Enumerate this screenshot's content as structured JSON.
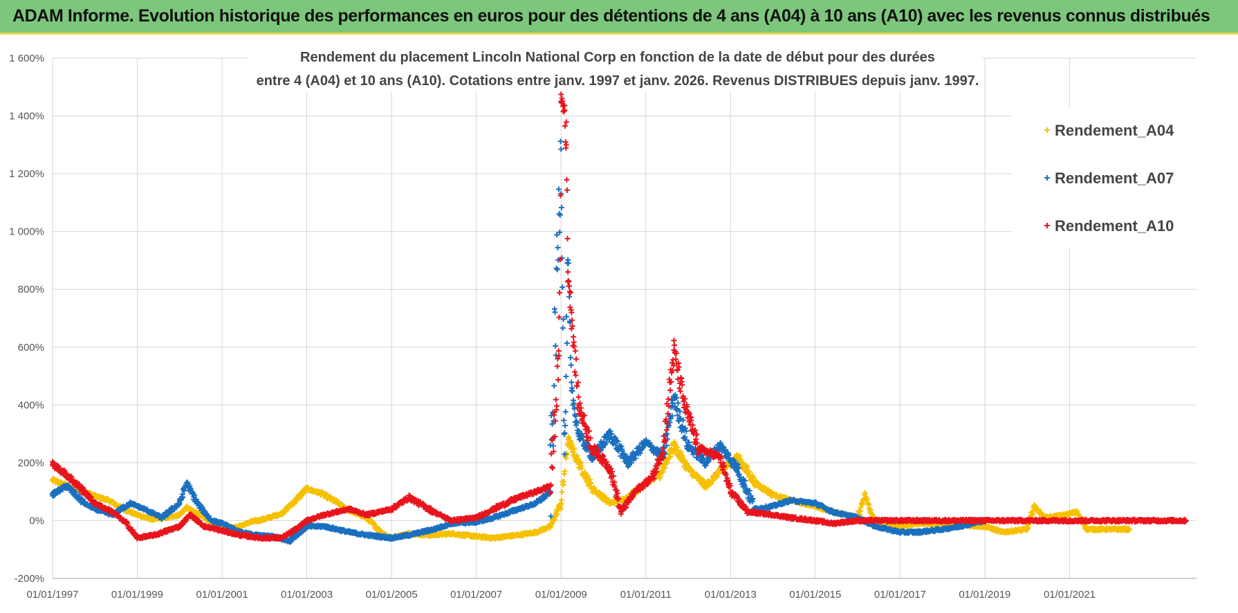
{
  "banner": {
    "title": "ADAM Informe. Evolution historique des performances en euros pour des détentions de 4 ans (A04) à 10 ans (A10) avec les revenus connus distribués",
    "background": "#7cc77b",
    "accent_border": "#e6d54a"
  },
  "chart_data": {
    "type": "scatter",
    "title_line1": "Rendement du placement Lincoln National Corp en fonction de la date de début pour des durées",
    "title_line2": "entre 4 (A04) et 10 ans (A10).  Cotations entre janv. 1997 et janv. 2026. Revenus DISTRIBUES  depuis janv. 1997.",
    "xlabel": "",
    "ylabel": "",
    "marker": "+",
    "grid": true,
    "legend_position": "top-right",
    "xlim": [
      "1997-01-01",
      "2023-12-31"
    ],
    "ylim": [
      -200,
      1600
    ],
    "y_ticks": [
      {
        "v": -200,
        "label": "-200%"
      },
      {
        "v": 0,
        "label": "0%"
      },
      {
        "v": 200,
        "label": "200%"
      },
      {
        "v": 400,
        "label": "400%"
      },
      {
        "v": 600,
        "label": "600%"
      },
      {
        "v": 800,
        "label": "800%"
      },
      {
        "v": 1000,
        "label": "1 000%"
      },
      {
        "v": 1200,
        "label": "1 200%"
      },
      {
        "v": 1400,
        "label": "1 400%"
      },
      {
        "v": 1600,
        "label": "1 600%"
      }
    ],
    "x_ticks": [
      {
        "date": "1997-01-01",
        "label": "01/01/1997"
      },
      {
        "date": "1999-01-01",
        "label": "01/01/1999"
      },
      {
        "date": "2001-01-01",
        "label": "01/01/2001"
      },
      {
        "date": "2003-01-01",
        "label": "01/01/2003"
      },
      {
        "date": "2005-01-01",
        "label": "01/01/2005"
      },
      {
        "date": "2007-01-01",
        "label": "01/01/2007"
      },
      {
        "date": "2009-01-01",
        "label": "01/01/2009"
      },
      {
        "date": "2011-01-01",
        "label": "01/01/2011"
      },
      {
        "date": "2013-01-01",
        "label": "01/01/2013"
      },
      {
        "date": "2015-01-01",
        "label": "01/01/2015"
      },
      {
        "date": "2017-01-01",
        "label": "01/01/2017"
      },
      {
        "date": "2019-01-01",
        "label": "01/01/2019"
      },
      {
        "date": "2021-01-01",
        "label": "01/01/2021"
      }
    ],
    "series": [
      {
        "name": "Rendement_A04",
        "color": "#f5c000",
        "points": [
          [
            "1997-01-01",
            140
          ],
          [
            "1997-06-01",
            115
          ],
          [
            "1997-10-01",
            100
          ],
          [
            "1998-01-01",
            85
          ],
          [
            "1998-05-01",
            70
          ],
          [
            "1998-09-01",
            40
          ],
          [
            "1999-01-01",
            20
          ],
          [
            "1999-05-01",
            5
          ],
          [
            "1999-09-01",
            10
          ],
          [
            "2000-01-01",
            20
          ],
          [
            "2000-03-01",
            45
          ],
          [
            "2000-06-01",
            25
          ],
          [
            "2000-10-01",
            -5
          ],
          [
            "2001-01-01",
            -15
          ],
          [
            "2001-05-01",
            -25
          ],
          [
            "2001-09-01",
            -5
          ],
          [
            "2002-01-01",
            5
          ],
          [
            "2002-06-01",
            25
          ],
          [
            "2002-09-01",
            60
          ],
          [
            "2003-01-01",
            110
          ],
          [
            "2003-05-01",
            95
          ],
          [
            "2003-10-01",
            60
          ],
          [
            "2004-01-01",
            35
          ],
          [
            "2004-06-01",
            10
          ],
          [
            "2004-10-01",
            -40
          ],
          [
            "2005-01-01",
            -60
          ],
          [
            "2005-06-01",
            -45
          ],
          [
            "2005-12-01",
            -50
          ],
          [
            "2006-06-01",
            -45
          ],
          [
            "2007-01-01",
            -55
          ],
          [
            "2007-06-01",
            -60
          ],
          [
            "2008-01-01",
            -50
          ],
          [
            "2008-06-01",
            -40
          ],
          [
            "2008-10-01",
            -20
          ],
          [
            "2009-01-01",
            60
          ],
          [
            "2009-03-01",
            280
          ],
          [
            "2009-06-01",
            200
          ],
          [
            "2009-10-01",
            110
          ],
          [
            "2010-03-01",
            60
          ],
          [
            "2010-08-01",
            80
          ],
          [
            "2011-01-01",
            130
          ],
          [
            "2011-05-01",
            160
          ],
          [
            "2011-09-01",
            260
          ],
          [
            "2012-01-01",
            180
          ],
          [
            "2012-06-01",
            120
          ],
          [
            "2012-10-01",
            170
          ],
          [
            "2013-03-01",
            220
          ],
          [
            "2013-08-01",
            130
          ],
          [
            "2014-01-01",
            90
          ],
          [
            "2014-06-01",
            70
          ],
          [
            "2015-01-01",
            50
          ],
          [
            "2015-06-01",
            30
          ],
          [
            "2016-01-01",
            10
          ],
          [
            "2016-03-01",
            90
          ],
          [
            "2016-06-01",
            -5
          ],
          [
            "2017-01-01",
            -20
          ],
          [
            "2017-06-01",
            -10
          ],
          [
            "2018-01-01",
            -10
          ],
          [
            "2018-06-01",
            -15
          ],
          [
            "2019-01-01",
            -20
          ],
          [
            "2019-06-01",
            -40
          ],
          [
            "2020-01-01",
            -30
          ],
          [
            "2020-03-01",
            50
          ],
          [
            "2020-06-01",
            10
          ],
          [
            "2020-12-01",
            20
          ],
          [
            "2021-03-01",
            30
          ],
          [
            "2021-06-01",
            -30
          ],
          [
            "2022-01-01",
            -30
          ],
          [
            "2022-06-01",
            -30
          ]
        ]
      },
      {
        "name": "Rendement_A07",
        "color": "#1a6fbf",
        "points": [
          [
            "1997-01-01",
            90
          ],
          [
            "1997-05-01",
            120
          ],
          [
            "1997-10-01",
            60
          ],
          [
            "1998-01-01",
            40
          ],
          [
            "1998-06-01",
            20
          ],
          [
            "1998-11-01",
            60
          ],
          [
            "1999-03-01",
            40
          ],
          [
            "1999-08-01",
            10
          ],
          [
            "2000-01-01",
            60
          ],
          [
            "2000-03-01",
            130
          ],
          [
            "2000-06-01",
            60
          ],
          [
            "2000-10-01",
            0
          ],
          [
            "2001-01-01",
            -10
          ],
          [
            "2001-06-01",
            -40
          ],
          [
            "2001-10-01",
            -50
          ],
          [
            "2002-04-01",
            -55
          ],
          [
            "2002-08-01",
            -70
          ],
          [
            "2003-01-01",
            -20
          ],
          [
            "2003-06-01",
            -20
          ],
          [
            "2004-01-01",
            -40
          ],
          [
            "2004-06-01",
            -50
          ],
          [
            "2005-01-01",
            -60
          ],
          [
            "2005-06-01",
            -50
          ],
          [
            "2006-01-01",
            -30
          ],
          [
            "2006-06-01",
            -10
          ],
          [
            "2007-01-01",
            -5
          ],
          [
            "2007-06-01",
            10
          ],
          [
            "2008-01-01",
            40
          ],
          [
            "2008-06-01",
            60
          ],
          [
            "2008-10-01",
            100
          ],
          [
            "2009-01-01",
            1285
          ],
          [
            "2009-02-01",
            230
          ],
          [
            "2009-03-01",
            890
          ],
          [
            "2009-04-01",
            450
          ],
          [
            "2009-06-01",
            300
          ],
          [
            "2009-10-01",
            220
          ],
          [
            "2010-03-01",
            300
          ],
          [
            "2010-08-01",
            200
          ],
          [
            "2011-01-01",
            270
          ],
          [
            "2011-06-01",
            220
          ],
          [
            "2011-09-01",
            430
          ],
          [
            "2012-01-01",
            260
          ],
          [
            "2012-06-01",
            200
          ],
          [
            "2012-10-01",
            260
          ],
          [
            "2013-03-01",
            180
          ],
          [
            "2013-08-01",
            40
          ],
          [
            "2014-01-01",
            50
          ],
          [
            "2014-06-01",
            70
          ],
          [
            "2015-01-01",
            60
          ],
          [
            "2015-06-01",
            30
          ],
          [
            "2016-01-01",
            10
          ],
          [
            "2016-06-01",
            -20
          ],
          [
            "2017-01-01",
            -40
          ],
          [
            "2017-06-01",
            -40
          ],
          [
            "2018-01-01",
            -30
          ],
          [
            "2018-06-01",
            -20
          ],
          [
            "2019-01-01",
            0
          ]
        ]
      },
      {
        "name": "Rendement_A10",
        "color": "#e8141c",
        "points": [
          [
            "1997-01-01",
            195
          ],
          [
            "1997-05-01",
            160
          ],
          [
            "1997-10-01",
            100
          ],
          [
            "1998-01-01",
            60
          ],
          [
            "1998-06-01",
            30
          ],
          [
            "1998-10-01",
            -10
          ],
          [
            "1999-01-01",
            -60
          ],
          [
            "1999-06-01",
            -50
          ],
          [
            "2000-01-01",
            -20
          ],
          [
            "2000-04-01",
            20
          ],
          [
            "2000-08-01",
            -20
          ],
          [
            "2001-01-01",
            -35
          ],
          [
            "2001-06-01",
            -50
          ],
          [
            "2001-12-01",
            -60
          ],
          [
            "2002-06-01",
            -60
          ],
          [
            "2002-10-01",
            -30
          ],
          [
            "2003-01-01",
            0
          ],
          [
            "2003-06-01",
            20
          ],
          [
            "2004-01-01",
            40
          ],
          [
            "2004-06-01",
            20
          ],
          [
            "2005-01-01",
            40
          ],
          [
            "2005-06-01",
            80
          ],
          [
            "2006-01-01",
            30
          ],
          [
            "2006-06-01",
            0
          ],
          [
            "2007-01-01",
            10
          ],
          [
            "2007-06-01",
            40
          ],
          [
            "2008-01-01",
            80
          ],
          [
            "2008-06-01",
            100
          ],
          [
            "2008-10-01",
            120
          ],
          [
            "2008-12-15",
            570
          ],
          [
            "2009-01-01",
            1450
          ],
          [
            "2009-02-01",
            1420
          ],
          [
            "2009-02-15",
            1300
          ],
          [
            "2009-03-01",
            860
          ],
          [
            "2009-04-01",
            720
          ],
          [
            "2009-06-01",
            400
          ],
          [
            "2009-10-01",
            250
          ],
          [
            "2010-03-01",
            180
          ],
          [
            "2010-06-01",
            30
          ],
          [
            "2010-10-01",
            100
          ],
          [
            "2011-03-01",
            150
          ],
          [
            "2011-06-01",
            250
          ],
          [
            "2011-09-01",
            590
          ],
          [
            "2011-12-01",
            400
          ],
          [
            "2012-04-01",
            250
          ],
          [
            "2012-10-01",
            220
          ],
          [
            "2013-01-01",
            100
          ],
          [
            "2013-06-01",
            30
          ],
          [
            "2014-01-01",
            20
          ],
          [
            "2014-06-01",
            10
          ],
          [
            "2015-01-01",
            0
          ],
          [
            "2015-06-01",
            -10
          ],
          [
            "2016-01-01",
            0
          ],
          [
            "2016-06-01",
            0
          ],
          [
            "2017-01-01",
            0
          ],
          [
            "2018-01-01",
            0
          ],
          [
            "2019-01-01",
            0
          ],
          [
            "2020-01-01",
            0
          ],
          [
            "2021-01-01",
            0
          ],
          [
            "2022-01-01",
            0
          ],
          [
            "2023-01-01",
            0
          ],
          [
            "2023-10-01",
            0
          ]
        ]
      }
    ]
  }
}
